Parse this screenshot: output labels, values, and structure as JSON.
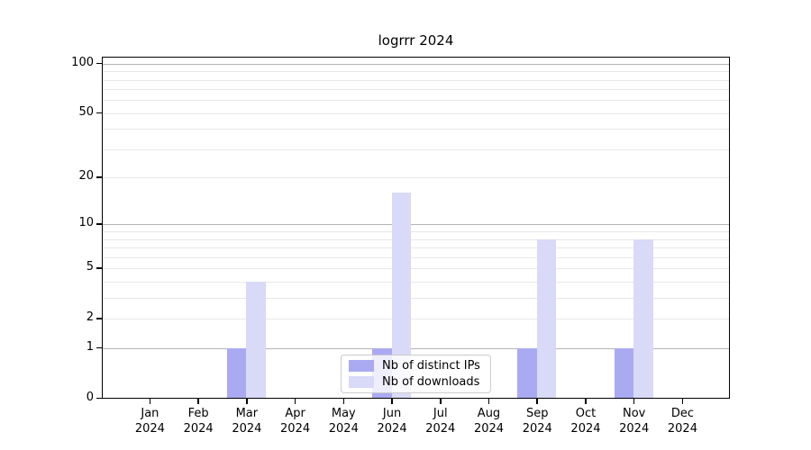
{
  "title": "logrrr 2024",
  "colors": {
    "ips_bar": "#aaaaf2",
    "downloads_bar": "#d9d9f8",
    "grid_major": "#b3b3b3",
    "grid_minor": "#e8e8e8",
    "spine": "#000000",
    "legend_border": "#cccccc"
  },
  "legend": {
    "items": [
      {
        "label": "Nb of distinct IPs",
        "series": "ips"
      },
      {
        "label": "Nb of downloads",
        "series": "downloads"
      }
    ]
  },
  "chart_data": {
    "type": "bar",
    "title": "logrrr 2024",
    "xlabel": "",
    "ylabel": "",
    "categories": [
      "Jan 2024",
      "Feb 2024",
      "Mar 2024",
      "Apr 2024",
      "May 2024",
      "Jun 2024",
      "Jul 2024",
      "Aug 2024",
      "Sep 2024",
      "Oct 2024",
      "Nov 2024",
      "Dec 2024"
    ],
    "series": [
      {
        "name": "Nb of distinct IPs",
        "key": "ips",
        "values": [
          0,
          0,
          1,
          0,
          0,
          1,
          0,
          0,
          1,
          0,
          1,
          0
        ]
      },
      {
        "name": "Nb of downloads",
        "key": "downloads",
        "values": [
          0,
          0,
          4,
          0,
          0,
          16,
          0,
          0,
          8,
          0,
          8,
          0
        ]
      }
    ],
    "yscale": "log1p",
    "ylim": [
      0,
      111
    ],
    "y_tick_values": [
      0,
      1,
      2,
      5,
      10,
      20,
      50,
      100
    ],
    "y_tick_labels": [
      "0",
      "1",
      "2",
      "5",
      "10",
      "20",
      "50",
      "100"
    ],
    "grid_major_values": [
      1,
      10,
      100
    ],
    "grid_minor_values": [
      2,
      3,
      4,
      5,
      6,
      7,
      8,
      9,
      20,
      30,
      40,
      50,
      60,
      70,
      80,
      90
    ],
    "grid": "on",
    "legend_position": "lower center"
  }
}
